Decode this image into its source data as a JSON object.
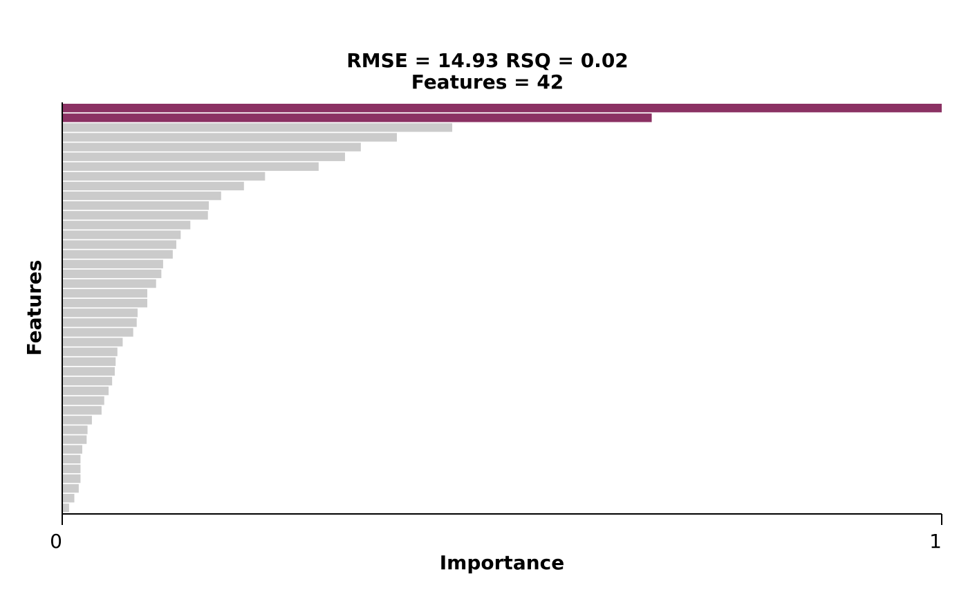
{
  "chart_data": {
    "type": "bar",
    "orientation": "horizontal",
    "title_line1": "RMSE = 14.93    RSQ = 0.02",
    "title_line2": "Features = 42",
    "xlabel": "Importance",
    "ylabel": "Features",
    "xlim": [
      0,
      1
    ],
    "x_ticks": [
      "0",
      "1"
    ],
    "grid": false,
    "legend": "none",
    "highlight_color": "#8B3163",
    "bar_color": "#CBCBCB",
    "highlight_count": 2,
    "values": [
      1.0,
      0.67,
      0.443,
      0.38,
      0.339,
      0.321,
      0.291,
      0.23,
      0.206,
      0.18,
      0.166,
      0.165,
      0.145,
      0.134,
      0.129,
      0.125,
      0.114,
      0.112,
      0.106,
      0.096,
      0.096,
      0.085,
      0.084,
      0.08,
      0.068,
      0.062,
      0.06,
      0.059,
      0.056,
      0.052,
      0.047,
      0.044,
      0.033,
      0.028,
      0.027,
      0.022,
      0.02,
      0.02,
      0.02,
      0.018,
      0.013,
      0.007
    ]
  }
}
